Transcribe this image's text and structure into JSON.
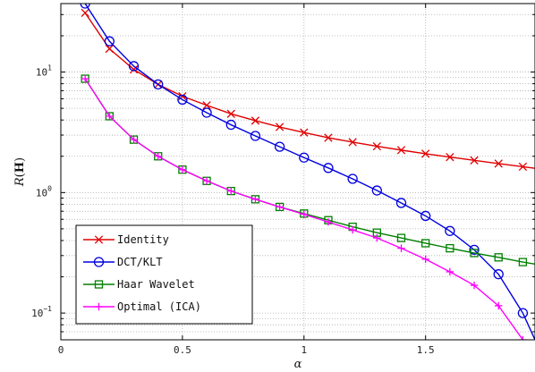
{
  "chart_data": {
    "type": "line",
    "xlabel": "α",
    "ylabel": "R(H)",
    "yscale": "log",
    "xlim": [
      0,
      1.95
    ],
    "ylim": [
      0.06,
      37
    ],
    "grid": true,
    "legend_position": "bottom-left",
    "x_ticks": [
      {
        "value": 0,
        "label": "0"
      },
      {
        "value": 0.5,
        "label": "0.5"
      },
      {
        "value": 1,
        "label": "1"
      },
      {
        "value": 1.5,
        "label": "1.5"
      }
    ],
    "y_ticks": [
      {
        "value": 0.1,
        "base": "10",
        "exp": "−1"
      },
      {
        "value": 1,
        "base": "10",
        "exp": "0"
      },
      {
        "value": 10,
        "base": "10",
        "exp": "1"
      }
    ],
    "series": [
      {
        "name": "Identity",
        "color": "#e00000",
        "marker": "x",
        "x": [
          0.1,
          0.2,
          0.3,
          0.4,
          0.5,
          0.6,
          0.7,
          0.8,
          0.9,
          1.0,
          1.1,
          1.2,
          1.3,
          1.4,
          1.5,
          1.6,
          1.7,
          1.8,
          1.9,
          1.95
        ],
        "y": [
          31,
          15.6,
          10.5,
          7.9,
          6.3,
          5.3,
          4.5,
          3.95,
          3.5,
          3.15,
          2.85,
          2.62,
          2.42,
          2.25,
          2.1,
          1.97,
          1.85,
          1.74,
          1.64,
          1.59
        ]
      },
      {
        "name": "DCT/KLT",
        "color": "#0000e0",
        "marker": "o",
        "x": [
          0.1,
          0.2,
          0.3,
          0.4,
          0.5,
          0.6,
          0.7,
          0.8,
          0.9,
          1.0,
          1.1,
          1.2,
          1.3,
          1.4,
          1.5,
          1.6,
          1.7,
          1.8,
          1.9,
          1.95
        ],
        "y": [
          37,
          18,
          11.2,
          7.9,
          5.9,
          4.6,
          3.65,
          2.95,
          2.4,
          1.95,
          1.6,
          1.3,
          1.04,
          0.82,
          0.64,
          0.48,
          0.335,
          0.21,
          0.1,
          0.06
        ]
      },
      {
        "name": "Haar Wavelet",
        "color": "#008000",
        "marker": "s",
        "x": [
          0.1,
          0.2,
          0.3,
          0.4,
          0.5,
          0.6,
          0.7,
          0.8,
          0.9,
          1.0,
          1.1,
          1.2,
          1.3,
          1.4,
          1.5,
          1.6,
          1.7,
          1.8,
          1.9,
          1.95
        ],
        "y": [
          8.8,
          4.3,
          2.75,
          2.0,
          1.55,
          1.25,
          1.03,
          0.88,
          0.76,
          0.67,
          0.59,
          0.52,
          0.465,
          0.42,
          0.38,
          0.345,
          0.315,
          0.29,
          0.265,
          0.255
        ]
      },
      {
        "name": "Optimal (ICA)",
        "color": "#ff00ff",
        "marker": "+",
        "x": [
          0.1,
          0.2,
          0.3,
          0.4,
          0.5,
          0.6,
          0.7,
          0.8,
          0.9,
          1.0,
          1.1,
          1.2,
          1.3,
          1.4,
          1.5,
          1.6,
          1.7,
          1.8,
          1.9,
          1.95
        ],
        "y": [
          8.8,
          4.3,
          2.75,
          2.0,
          1.55,
          1.25,
          1.03,
          0.88,
          0.76,
          0.66,
          0.57,
          0.49,
          0.42,
          0.345,
          0.28,
          0.22,
          0.17,
          0.115,
          0.06,
          0.04
        ]
      }
    ]
  }
}
